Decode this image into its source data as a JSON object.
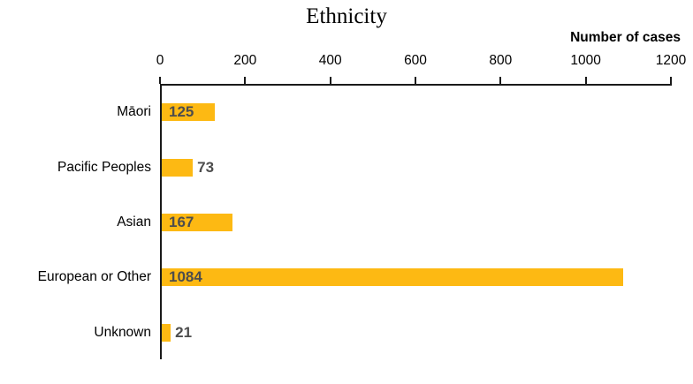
{
  "chart_data": {
    "type": "bar",
    "orientation": "horizontal",
    "title": "Ethnicity",
    "xlabel": "Number of cases",
    "categories": [
      "Māori",
      "Pacific Peoples",
      "Asian",
      "European or Other",
      "Unknown"
    ],
    "values": [
      125,
      73,
      167,
      1084,
      21
    ],
    "xlim": [
      0,
      1200
    ],
    "xticks": [
      0,
      200,
      400,
      600,
      800,
      1000,
      1200
    ],
    "axis_position": "top",
    "grid": "off",
    "legend": "none",
    "bar_color": "#FDB913",
    "value_label_color": "#4D4D4D",
    "axis_color": "#1A1A1A",
    "background_color": "#FFFFFF"
  }
}
